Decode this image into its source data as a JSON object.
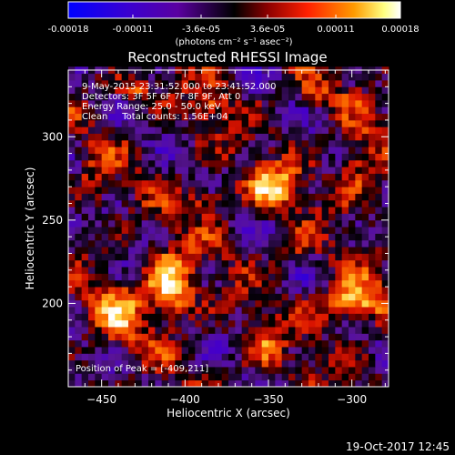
{
  "chart_data": {
    "type": "heatmap",
    "title": "Reconstructed RHESSI Image",
    "xlabel": "Heliocentric X (arcsec)",
    "ylabel": "Heliocentric Y (arcsec)",
    "xlim": [
      -470,
      -278
    ],
    "ylim": [
      150,
      340
    ],
    "x_ticks": [
      -450,
      -400,
      -350,
      -300
    ],
    "y_ticks": [
      200,
      250,
      300
    ],
    "colorbar": {
      "range": [
        -0.00018,
        0.00018
      ],
      "tick_values": [
        -0.00018,
        -0.00011,
        -3.6e-05,
        3.6e-05,
        0.00011,
        0.00018
      ],
      "tick_labels": [
        "-0.00018",
        "-0.00011",
        "-3.6e-05",
        "3.6e-05",
        "0.00011",
        "0.00018"
      ],
      "unit_label": "(photons cm⁻² s⁻¹ asec⁻²)",
      "colors": [
        "#0000ff",
        "#5a00b0",
        "#000000",
        "#8b0000",
        "#ff2000",
        "#ff9a00",
        "#ffff80",
        "#ffffff"
      ]
    },
    "annotations": [
      "9-May-2015 23:31:52.000 to 23:41:52.000",
      "Detectors: 3F 5F 6F 7F 8F 9F, Att 0",
      "Energy Range: 25.0 - 50.0 keV",
      "Clean     Total counts: 1.56E+04"
    ],
    "peak_label": "Position of Peak = [-409,211]",
    "peak": [
      -409,
      211
    ],
    "sources": [
      {
        "x": -409,
        "y": 211,
        "amp": 1.0,
        "sx": 10,
        "sy": 14
      },
      {
        "x": -299,
        "y": 201,
        "amp": 0.9,
        "sx": 13,
        "sy": 9
      },
      {
        "x": -347,
        "y": 270,
        "amp": 0.78,
        "sx": 11,
        "sy": 9
      },
      {
        "x": -440,
        "y": 195,
        "amp": 0.6,
        "sx": 10,
        "sy": 12
      },
      {
        "x": -385,
        "y": 262,
        "amp": 0.55,
        "sx": 9,
        "sy": 6
      },
      {
        "x": -296,
        "y": 283,
        "amp": 0.5,
        "sx": 9,
        "sy": 14
      },
      {
        "x": -430,
        "y": 328,
        "amp": 0.5,
        "sx": 8,
        "sy": 5
      },
      {
        "x": -385,
        "y": 318,
        "amp": 0.45,
        "sx": 8,
        "sy": 6
      },
      {
        "x": -353,
        "y": 175,
        "amp": 0.42,
        "sx": 8,
        "sy": 10
      },
      {
        "x": -455,
        "y": 270,
        "amp": 0.35,
        "sx": 6,
        "sy": 10
      },
      {
        "x": -320,
        "y": 325,
        "amp": 0.32,
        "sx": 10,
        "sy": 6
      },
      {
        "x": -338,
        "y": 233,
        "amp": 0.35,
        "sx": 8,
        "sy": 6
      }
    ]
  },
  "footer": {
    "timestamp": "19-Oct-2017 12:45"
  }
}
